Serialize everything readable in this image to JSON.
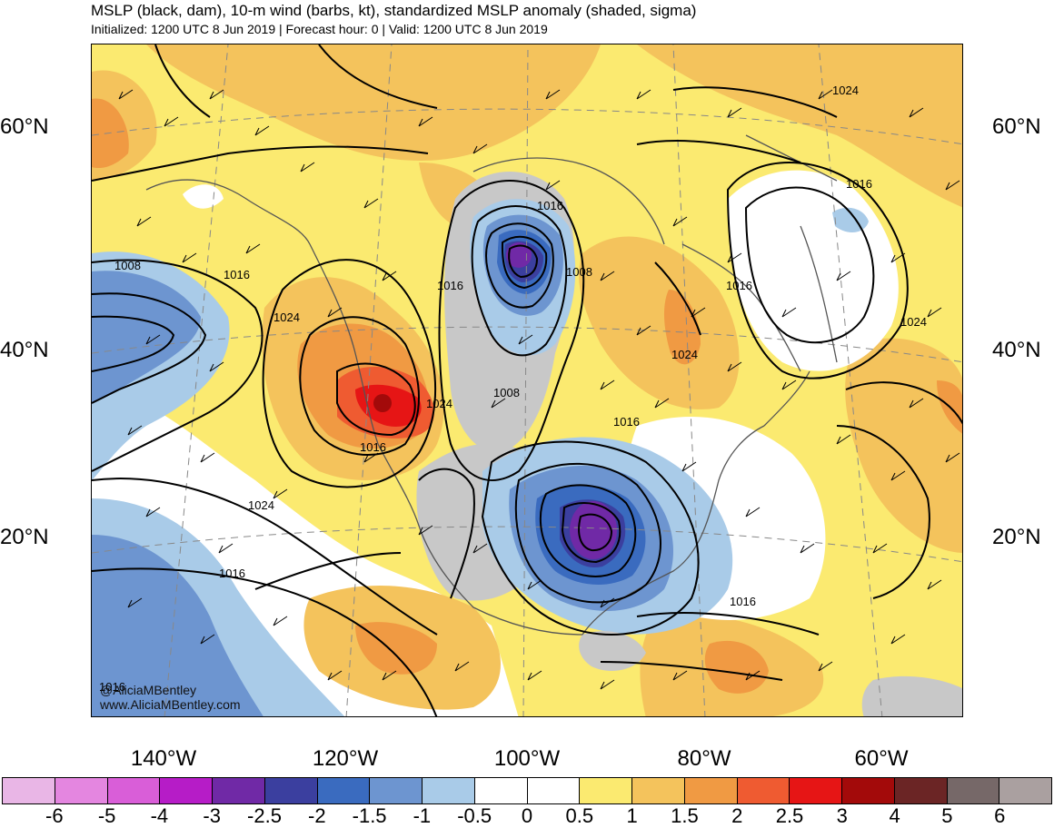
{
  "title": "MSLP (black, dam), 10-m wind (barbs, kt), standardized MSLP anomaly (shaded, sigma)",
  "subtitle": "Initialized: 1200 UTC 8 Jun 2019 | Forecast hour: 0 | Valid: 1200 UTC 8 Jun 2019",
  "lat_labels": [
    "60°N",
    "40°N",
    "20°N"
  ],
  "lon_labels": [
    "140°W",
    "120°W",
    "100°W",
    "80°W",
    "60°W"
  ],
  "credits": [
    "@AliciaMBentley",
    "www.AliciaMBentley.com"
  ],
  "contour_labels": [
    "1024",
    "1016",
    "1008",
    "1016",
    "1016",
    "1024",
    "1016",
    "1016",
    "1008",
    "1008",
    "1016",
    "1024",
    "1024",
    "1016",
    "1016",
    "1024",
    "1024",
    "1016",
    "1016"
  ],
  "colorbar": {
    "colors": [
      "#e9b6e6",
      "#e486e0",
      "#d95ed8",
      "#b61cc7",
      "#7029a6",
      "#3b3f9f",
      "#3a6bbf",
      "#6d95d0",
      "#a9cbe8",
      "#ffffff",
      "#ffffff",
      "#fbea70",
      "#f4c35c",
      "#f09a43",
      "#ef5b31",
      "#e61515",
      "#a30a0a",
      "#6b2525",
      "#766868",
      "#aaa0a0"
    ],
    "ticks": [
      "-6",
      "-5",
      "-4",
      "-3",
      "-2.5",
      "-2",
      "-1.5",
      "-1",
      "-0.5",
      "0",
      "0.5",
      "1",
      "1.5",
      "2",
      "2.5",
      "3",
      "4",
      "5",
      "6"
    ]
  }
}
